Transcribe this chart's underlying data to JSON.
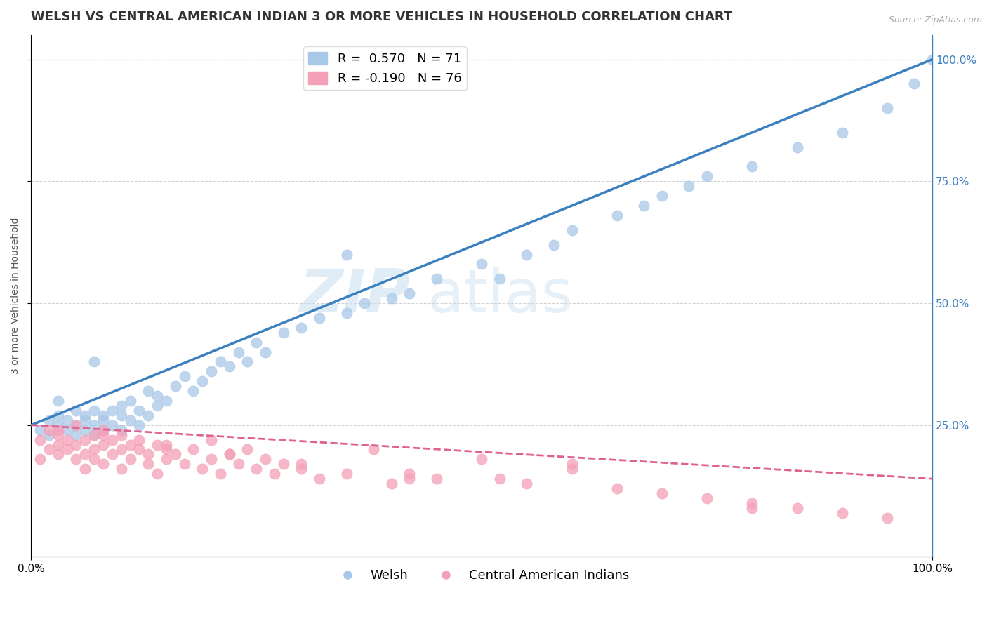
{
  "title": "WELSH VS CENTRAL AMERICAN INDIAN 3 OR MORE VEHICLES IN HOUSEHOLD CORRELATION CHART",
  "source": "Source: ZipAtlas.com",
  "ylabel": "3 or more Vehicles in Household",
  "xlim": [
    0,
    100
  ],
  "ylim": [
    -2,
    105
  ],
  "legend_welsh_R": "R =  0.570",
  "legend_welsh_N": "N = 71",
  "legend_ca_R": "R = -0.190",
  "legend_ca_N": "N = 76",
  "welsh_color": "#a8c8e8",
  "ca_color": "#f4a0b8",
  "welsh_line_color": "#3a7fbf",
  "ca_line_color": "#e06090",
  "watermark_zip": "ZIP",
  "watermark_atlas": "atlas",
  "background_color": "#ffffff",
  "grid_color": "#c8c8c8",
  "welsh_trend_x": [
    0,
    100
  ],
  "welsh_trend_y": [
    25,
    100
  ],
  "ca_trend_x": [
    0,
    100
  ],
  "ca_trend_y": [
    25,
    14
  ],
  "title_fontsize": 13,
  "axis_fontsize": 10,
  "tick_fontsize": 11,
  "legend_fontsize": 13,
  "welsh_scatter_x": [
    1,
    2,
    2,
    3,
    3,
    4,
    4,
    5,
    5,
    5,
    6,
    6,
    6,
    7,
    7,
    7,
    8,
    8,
    8,
    9,
    9,
    10,
    10,
    10,
    11,
    11,
    12,
    12,
    13,
    13,
    14,
    14,
    15,
    16,
    17,
    18,
    19,
    20,
    21,
    22,
    23,
    24,
    25,
    26,
    28,
    30,
    32,
    35,
    37,
    40,
    42,
    45,
    50,
    52,
    55,
    58,
    60,
    65,
    68,
    70,
    73,
    75,
    80,
    85,
    90,
    95,
    98,
    100,
    3,
    7,
    35
  ],
  "welsh_scatter_y": [
    24,
    26,
    23,
    25,
    27,
    24,
    26,
    25,
    28,
    23,
    27,
    24,
    26,
    25,
    28,
    23,
    27,
    24,
    26,
    25,
    28,
    27,
    24,
    29,
    26,
    30,
    25,
    28,
    27,
    32,
    29,
    31,
    30,
    33,
    35,
    32,
    34,
    36,
    38,
    37,
    40,
    38,
    42,
    40,
    44,
    45,
    47,
    48,
    50,
    51,
    52,
    55,
    58,
    55,
    60,
    62,
    65,
    68,
    70,
    72,
    74,
    76,
    78,
    82,
    85,
    90,
    95,
    100,
    30,
    38,
    60
  ],
  "ca_scatter_x": [
    1,
    1,
    2,
    2,
    3,
    3,
    3,
    4,
    4,
    5,
    5,
    5,
    6,
    6,
    6,
    7,
    7,
    7,
    8,
    8,
    8,
    9,
    9,
    10,
    10,
    10,
    11,
    11,
    12,
    12,
    13,
    13,
    14,
    14,
    15,
    15,
    16,
    17,
    18,
    19,
    20,
    20,
    21,
    22,
    23,
    24,
    25,
    26,
    27,
    28,
    30,
    32,
    35,
    38,
    40,
    42,
    45,
    50,
    55,
    60,
    65,
    70,
    75,
    80,
    85,
    90,
    95,
    3,
    8,
    15,
    22,
    30,
    42,
    60,
    80,
    52
  ],
  "ca_scatter_y": [
    22,
    18,
    20,
    24,
    23,
    19,
    21,
    20,
    22,
    18,
    21,
    25,
    19,
    22,
    16,
    23,
    20,
    18,
    21,
    24,
    17,
    22,
    19,
    20,
    23,
    16,
    21,
    18,
    20,
    22,
    17,
    19,
    21,
    15,
    20,
    18,
    19,
    17,
    20,
    16,
    18,
    22,
    15,
    19,
    17,
    20,
    16,
    18,
    15,
    17,
    16,
    14,
    15,
    20,
    13,
    15,
    14,
    18,
    13,
    17,
    12,
    11,
    10,
    9,
    8,
    7,
    6,
    24,
    23,
    21,
    19,
    17,
    14,
    16,
    8,
    14
  ]
}
